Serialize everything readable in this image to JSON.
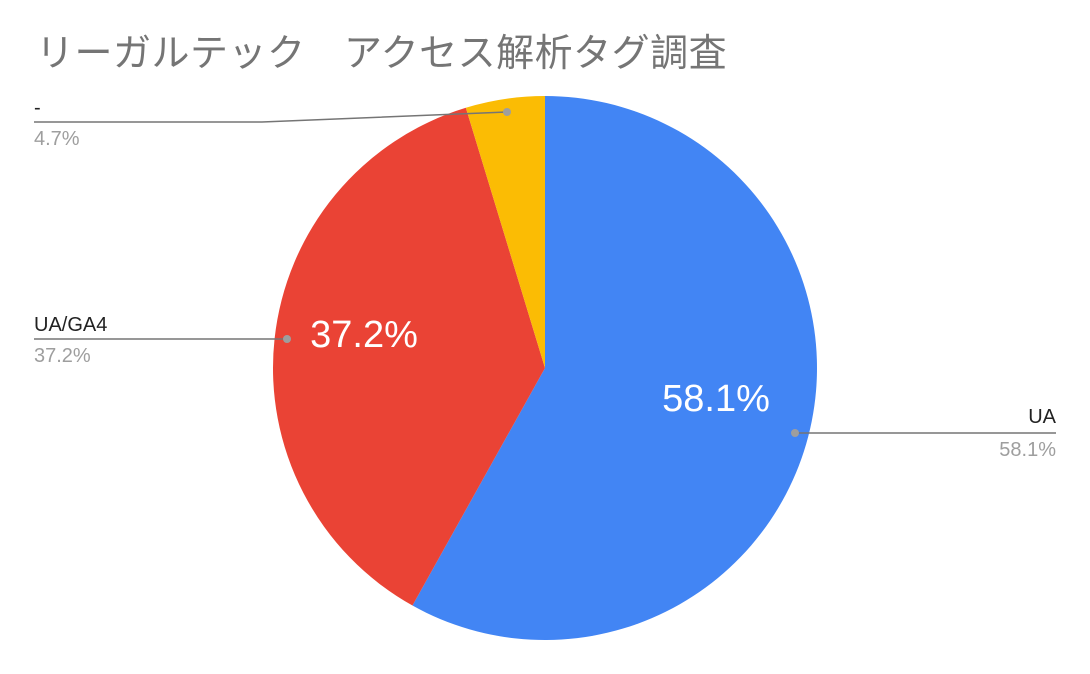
{
  "chart_data": {
    "type": "pie",
    "title": "リーガルテック　アクセス解析タグ調査",
    "slices": [
      {
        "label": "UA",
        "value": 58.1,
        "value_label": "58.1%",
        "color": "#4285f4",
        "show_inside": true
      },
      {
        "label": "UA/GA4",
        "value": 37.2,
        "value_label": "37.2%",
        "color": "#ea4335",
        "show_inside": true
      },
      {
        "label": "-",
        "value": 4.7,
        "value_label": "4.7%",
        "color": "#fbbc04",
        "show_inside": false
      }
    ],
    "legend": "none",
    "callout_lines": true
  }
}
